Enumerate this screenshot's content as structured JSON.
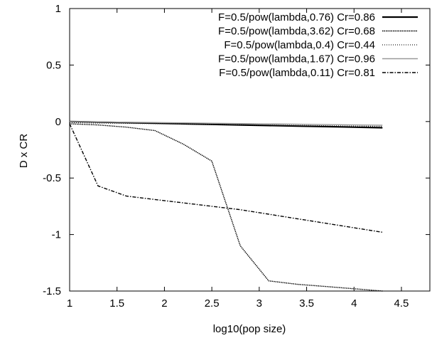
{
  "chart_data": {
    "type": "line",
    "title": "",
    "xlabel": "log10(pop size)",
    "ylabel": "D x CR",
    "xlim": [
      1,
      4.8
    ],
    "ylim": [
      -1.5,
      1
    ],
    "x_ticks": [
      "1",
      "1.5",
      "2",
      "2.5",
      "3",
      "3.5",
      "4",
      "4.5"
    ],
    "y_ticks": [
      "1",
      "0.5",
      "0",
      "-0.5",
      "-1",
      "-1.5"
    ],
    "grid": false,
    "legend_position": "top-right",
    "series": [
      {
        "name": "F=0.5/pow(lambda,0.76) Cr=0.86",
        "color": "#000000",
        "style": "solid-thick",
        "x": [
          1,
          1.3,
          1.6,
          1.9,
          2.2,
          2.5,
          2.8,
          3.1,
          3.4,
          3.7,
          4.0,
          4.3
        ],
        "y": [
          0,
          -0.005,
          -0.01,
          -0.015,
          -0.02,
          -0.025,
          -0.03,
          -0.035,
          -0.04,
          -0.045,
          -0.05,
          -0.055
        ]
      },
      {
        "name": "F=0.5/pow(lambda,3.62) Cr=0.68",
        "color": "#000000",
        "style": "dotted-dense",
        "x": [
          1,
          1.3,
          1.6,
          1.9,
          2.2,
          2.5,
          2.8,
          3.1,
          3.4,
          3.7,
          4.0,
          4.3
        ],
        "y": [
          -0.02,
          -0.03,
          -0.05,
          -0.08,
          -0.2,
          -0.35,
          -1.1,
          -1.41,
          -1.44,
          -1.46,
          -1.48,
          -1.5
        ]
      },
      {
        "name": "F=0.5/pow(lambda,0.4) Cr=0.44",
        "color": "#222222",
        "style": "dotted-sparse",
        "x": [
          1,
          1.3,
          1.6,
          1.9,
          2.2,
          2.5,
          2.8,
          3.1,
          3.4,
          3.7,
          4.0,
          4.3
        ],
        "y": [
          -0.01,
          -0.013,
          -0.016,
          -0.019,
          -0.022,
          -0.025,
          -0.028,
          -0.031,
          -0.034,
          -0.037,
          -0.04,
          -0.043
        ]
      },
      {
        "name": "F=0.5/pow(lambda,1.67) Cr=0.96",
        "color": "#999999",
        "style": "solid-gray",
        "x": [
          1,
          1.3,
          1.6,
          1.9,
          2.2,
          2.5,
          2.8,
          3.1,
          3.4,
          3.7,
          4.0,
          4.3
        ],
        "y": [
          0,
          -0.003,
          -0.006,
          -0.009,
          -0.012,
          -0.015,
          -0.018,
          -0.021,
          -0.024,
          -0.027,
          -0.03,
          -0.033
        ]
      },
      {
        "name": "F=0.5/pow(lambda,0.11) Cr=0.81",
        "color": "#000000",
        "style": "dash-dot",
        "x": [
          1,
          1.3,
          1.6,
          1.9,
          2.2,
          2.5,
          2.8,
          3.1,
          3.4,
          3.7,
          4.0,
          4.3
        ],
        "y": [
          -0.02,
          -0.57,
          -0.66,
          -0.69,
          -0.72,
          -0.75,
          -0.78,
          -0.82,
          -0.86,
          -0.9,
          -0.94,
          -0.98
        ]
      }
    ]
  }
}
